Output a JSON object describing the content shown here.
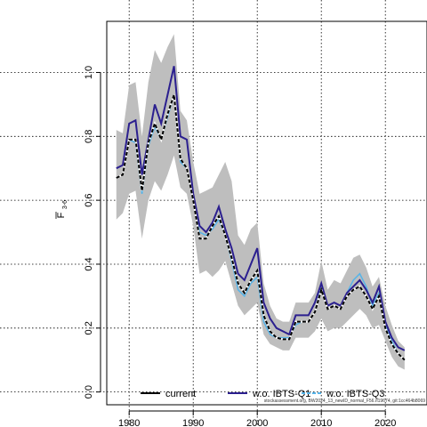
{
  "chart_data": {
    "type": "line",
    "title": "",
    "xlabel": "",
    "ylabel": "F",
    "ylabel_subscript": "3-6",
    "xlim": [
      1976.5,
      2026.5
    ],
    "ylim": [
      -0.04,
      1.16
    ],
    "xticks": [
      1980,
      1990,
      2000,
      2010,
      2020
    ],
    "yticks": [
      0.0,
      0.2,
      0.4,
      0.6,
      0.8,
      1.0
    ],
    "ytick_labels": [
      "0.0",
      "0.2",
      "0.4",
      "0.6",
      "0.8",
      "1.0"
    ],
    "grid": true,
    "legend_position": "bottom",
    "footnote": "stockassessment.org, BW2024_13_newID_normal_F56.ri19674, git:1cc464b8069",
    "x": [
      1978,
      1979,
      1980,
      1981,
      1982,
      1983,
      1984,
      1985,
      1986,
      1987,
      1988,
      1989,
      1990,
      1991,
      1992,
      1993,
      1994,
      1995,
      1996,
      1997,
      1998,
      1999,
      2000,
      2001,
      2002,
      2003,
      2004,
      2005,
      2006,
      2007,
      2008,
      2009,
      2010,
      2011,
      2012,
      2013,
      2014,
      2015,
      2016,
      2017,
      2018,
      2019,
      2020,
      2021,
      2022,
      2023
    ],
    "band": {
      "lower": [
        0.54,
        0.56,
        0.62,
        0.63,
        0.48,
        0.6,
        0.66,
        0.63,
        0.68,
        0.74,
        0.64,
        0.62,
        0.52,
        0.37,
        0.38,
        0.36,
        0.38,
        0.41,
        0.34,
        0.27,
        0.24,
        0.26,
        0.28,
        0.18,
        0.15,
        0.14,
        0.13,
        0.13,
        0.17,
        0.17,
        0.17,
        0.19,
        0.23,
        0.19,
        0.2,
        0.2,
        0.22,
        0.24,
        0.26,
        0.24,
        0.2,
        0.21,
        0.16,
        0.11,
        0.08,
        0.07
      ],
      "upper": [
        0.82,
        0.81,
        0.96,
        0.97,
        0.8,
        0.97,
        1.07,
        1.03,
        1.08,
        1.12,
        0.88,
        0.85,
        0.72,
        0.62,
        0.63,
        0.64,
        0.68,
        0.72,
        0.66,
        0.49,
        0.46,
        0.51,
        0.53,
        0.34,
        0.27,
        0.23,
        0.22,
        0.22,
        0.28,
        0.28,
        0.28,
        0.31,
        0.41,
        0.32,
        0.35,
        0.34,
        0.38,
        0.42,
        0.43,
        0.39,
        0.33,
        0.36,
        0.27,
        0.21,
        0.16,
        0.14
      ]
    },
    "series": [
      {
        "name": "current",
        "color": "#000000",
        "dash": "dashed",
        "values": [
          0.67,
          0.68,
          0.79,
          0.79,
          0.63,
          0.78,
          0.84,
          0.79,
          0.87,
          0.93,
          0.73,
          0.7,
          0.6,
          0.48,
          0.48,
          0.52,
          0.55,
          0.49,
          0.42,
          0.34,
          0.31,
          0.35,
          0.38,
          0.24,
          0.19,
          0.17,
          0.165,
          0.165,
          0.22,
          0.22,
          0.22,
          0.25,
          0.32,
          0.26,
          0.27,
          0.26,
          0.3,
          0.32,
          0.33,
          0.3,
          0.26,
          0.3,
          0.2,
          0.15,
          0.12,
          0.1
        ]
      },
      {
        "name": "w.o. IBTS-Q1",
        "color": "#2b1f8f",
        "dash": "solid",
        "values": [
          0.7,
          0.71,
          0.84,
          0.85,
          0.68,
          0.79,
          0.9,
          0.84,
          0.93,
          1.02,
          0.8,
          0.79,
          0.62,
          0.52,
          0.5,
          0.53,
          0.58,
          0.51,
          0.45,
          0.37,
          0.35,
          0.4,
          0.45,
          0.28,
          0.23,
          0.2,
          0.19,
          0.18,
          0.24,
          0.24,
          0.24,
          0.28,
          0.34,
          0.27,
          0.28,
          0.27,
          0.31,
          0.33,
          0.35,
          0.32,
          0.28,
          0.33,
          0.22,
          0.17,
          0.14,
          0.13
        ]
      },
      {
        "name": "w.o. IBTS-Q3",
        "color": "#56b4e9",
        "dash": "solid",
        "values": [
          0.67,
          0.68,
          0.79,
          0.78,
          0.62,
          0.77,
          0.83,
          0.79,
          0.86,
          0.93,
          0.72,
          0.7,
          0.6,
          0.5,
          0.49,
          0.51,
          0.54,
          0.49,
          0.41,
          0.32,
          0.3,
          0.34,
          0.36,
          0.22,
          0.18,
          0.17,
          0.17,
          0.17,
          0.21,
          0.22,
          0.22,
          0.25,
          0.33,
          0.27,
          0.28,
          0.27,
          0.31,
          0.35,
          0.37,
          0.33,
          0.27,
          0.31,
          0.21,
          0.16,
          0.12,
          0.1
        ]
      }
    ]
  }
}
